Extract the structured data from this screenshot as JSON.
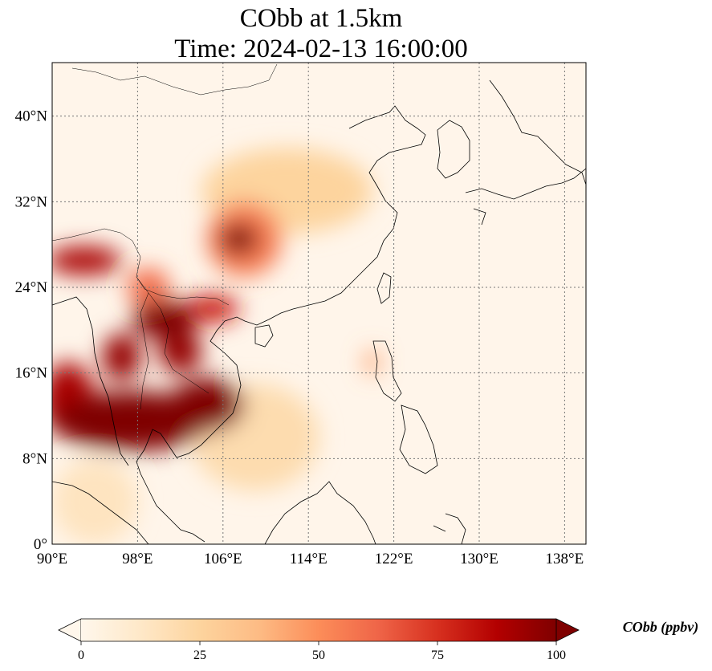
{
  "title": {
    "line1": "CObb at 1.5km",
    "line2": "Time: 2024-02-13 16:00:00"
  },
  "map": {
    "lon_range": [
      90,
      140
    ],
    "lat_range": [
      0,
      45
    ],
    "lon_ticks": [
      {
        "value": 90,
        "label": "90°E"
      },
      {
        "value": 98,
        "label": "98°E"
      },
      {
        "value": 106,
        "label": "106°E"
      },
      {
        "value": 114,
        "label": "114°E"
      },
      {
        "value": 122,
        "label": "122°E"
      },
      {
        "value": 130,
        "label": "130°E"
      },
      {
        "value": 138,
        "label": "138°E"
      }
    ],
    "lat_ticks": [
      {
        "value": 0,
        "label": "0°"
      },
      {
        "value": 8,
        "label": "8°N"
      },
      {
        "value": 16,
        "label": "16°N"
      },
      {
        "value": 24,
        "label": "24°N"
      },
      {
        "value": 32,
        "label": "32°N"
      },
      {
        "value": 40,
        "label": "40°N"
      }
    ],
    "gridlines": true,
    "colormap": "OrRd",
    "plumes": [
      {
        "name": "indochina-south",
        "lon": 97.5,
        "lat": 11.5,
        "rlon": 7.5,
        "rlat": 2.8,
        "value": 100
      },
      {
        "name": "indochina-east",
        "lon": 104.5,
        "lat": 13.0,
        "rlon": 3.5,
        "rlat": 2.5,
        "value": 100
      },
      {
        "name": "myanmar-west",
        "lon": 91.5,
        "lat": 13.5,
        "rlon": 2.5,
        "rlat": 3.5,
        "value": 90
      },
      {
        "name": "myanmar-north",
        "lon": 96.5,
        "lat": 17.5,
        "rlon": 1.8,
        "rlat": 2.2,
        "value": 95
      },
      {
        "name": "laos-north",
        "lon": 100.5,
        "lat": 21.0,
        "rlon": 3.0,
        "rlat": 1.8,
        "value": 100
      },
      {
        "name": "laos-central",
        "lon": 102.0,
        "lat": 18.0,
        "rlon": 2.0,
        "rlat": 2.0,
        "value": 95
      },
      {
        "name": "yunnan-guangxi",
        "lon": 105.0,
        "lat": 22.0,
        "rlon": 2.5,
        "rlat": 1.3,
        "value": 80
      },
      {
        "name": "sichuan",
        "lon": 107.5,
        "lat": 28.5,
        "rlon": 1.8,
        "rlat": 1.5,
        "value": 100
      },
      {
        "name": "sichuan-halo",
        "lon": 108.0,
        "lat": 28.5,
        "rlon": 3.5,
        "rlat": 3.5,
        "value": 55
      },
      {
        "name": "northeast-india",
        "lon": 93.0,
        "lat": 26.5,
        "rlon": 3.5,
        "rlat": 1.3,
        "value": 90
      },
      {
        "name": "yunnan-west",
        "lon": 99.0,
        "lat": 24.0,
        "rlon": 2.0,
        "rlat": 1.8,
        "value": 60
      },
      {
        "name": "outflow-east",
        "lon": 112.0,
        "lat": 33.0,
        "rlon": 8.0,
        "rlat": 4.0,
        "value": 25
      },
      {
        "name": "taiwan-luzon",
        "lon": 120.0,
        "lat": 17.0,
        "rlon": 0.7,
        "rlat": 1.2,
        "value": 45
      },
      {
        "name": "south-china-sea-haze",
        "lon": 109.0,
        "lat": 10.0,
        "rlon": 6.0,
        "rlat": 5.0,
        "value": 20
      },
      {
        "name": "andaman-haze",
        "lon": 94.0,
        "lat": 4.0,
        "rlon": 4.0,
        "rlat": 4.0,
        "value": 15
      }
    ]
  },
  "colorbar": {
    "label": "CObb (ppbv)",
    "min": 0,
    "max": 100,
    "extend": "both",
    "ticks": [
      {
        "value": 0,
        "label": "0"
      },
      {
        "value": 25,
        "label": "25"
      },
      {
        "value": 50,
        "label": "50"
      },
      {
        "value": 75,
        "label": "75"
      },
      {
        "value": 100,
        "label": "100"
      }
    ],
    "stops": [
      "#fff7ec",
      "#fee8c8",
      "#fdd49e",
      "#fdbb84",
      "#fc8d59",
      "#ef6548",
      "#d7301f",
      "#b30000",
      "#7f0000"
    ]
  }
}
